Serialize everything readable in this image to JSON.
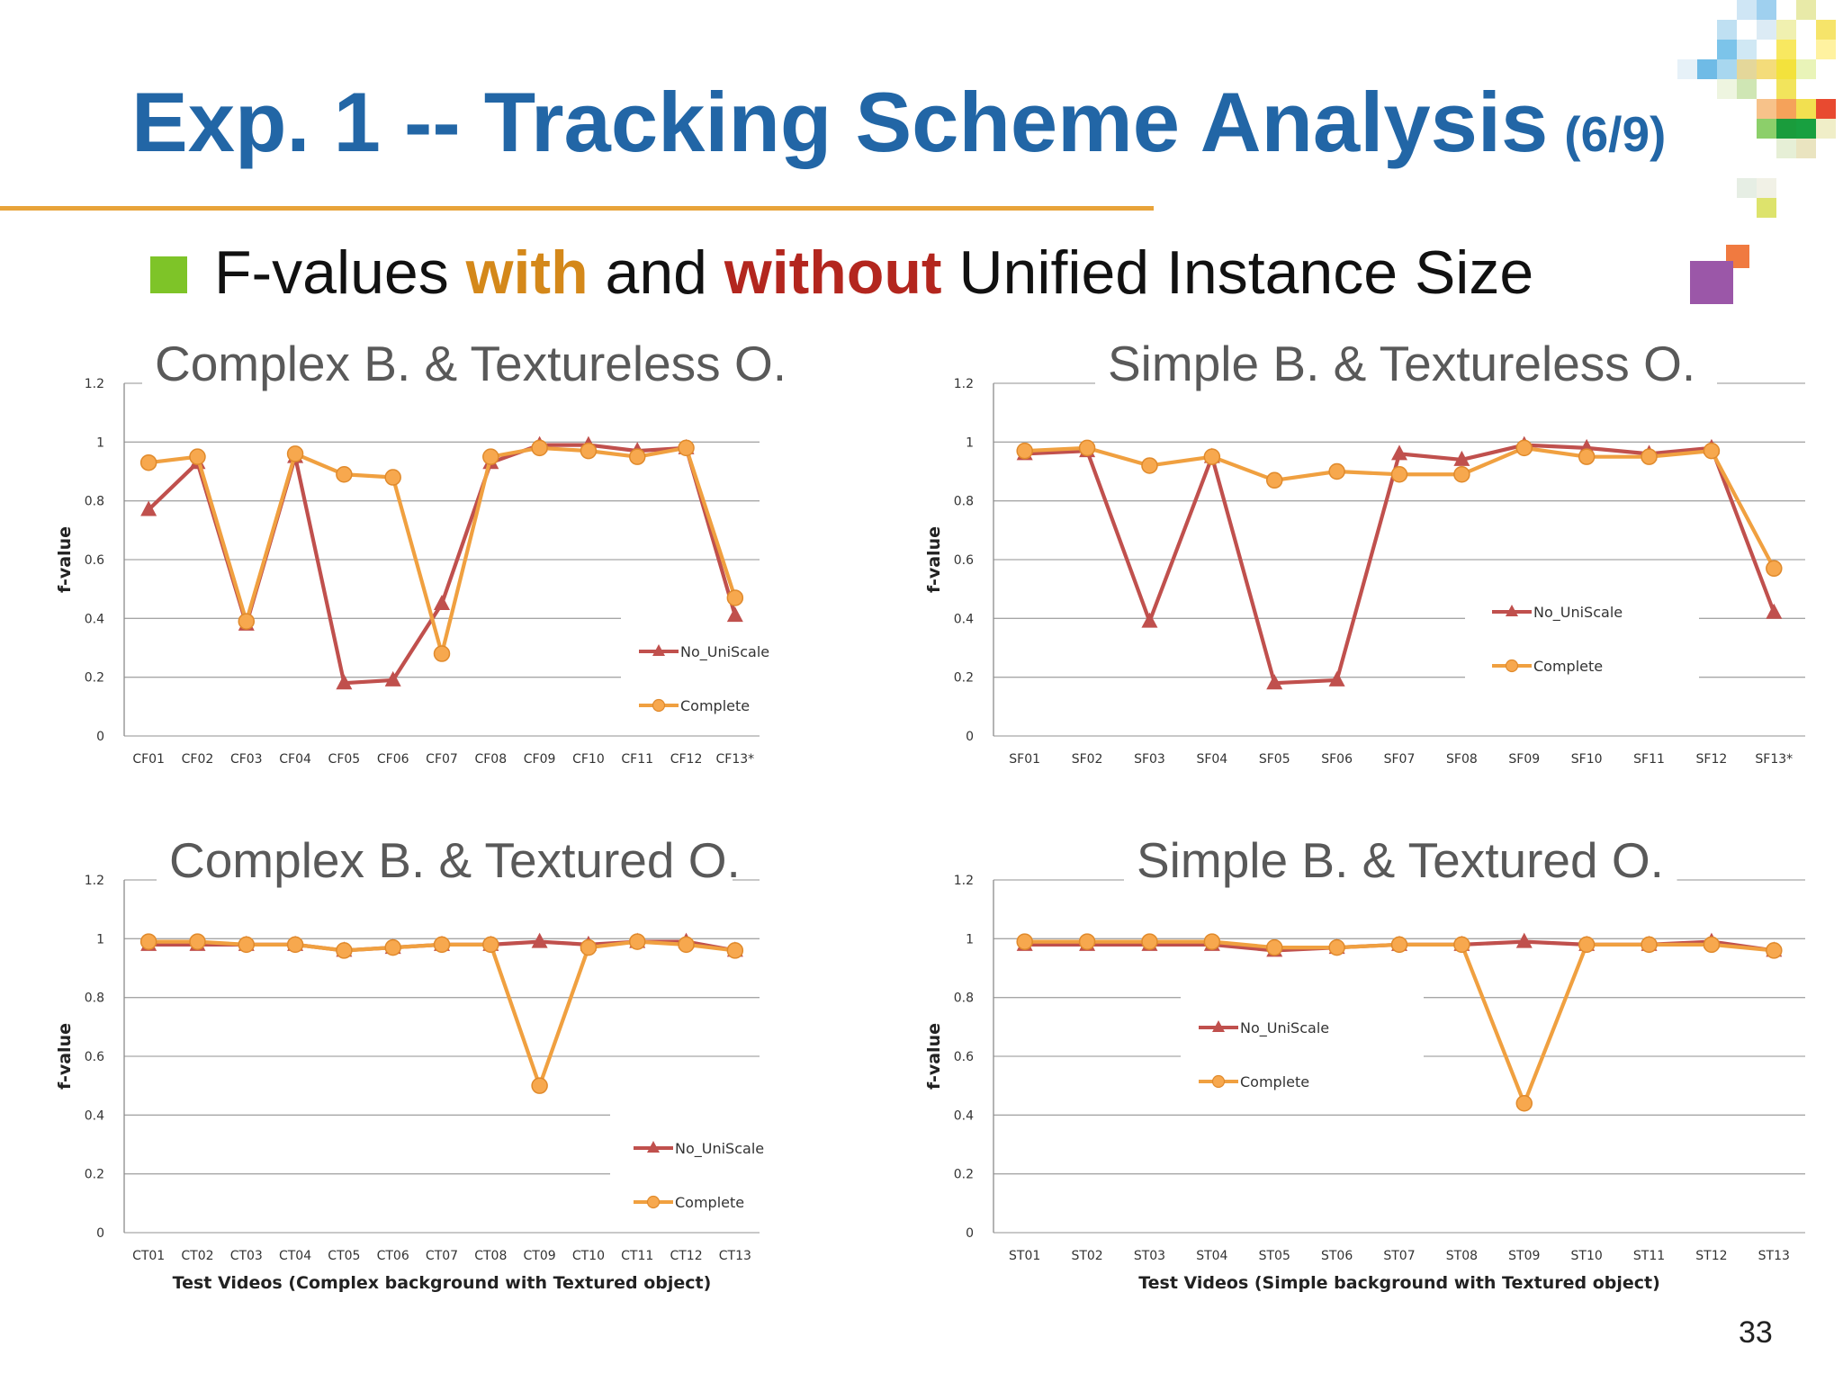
{
  "slide": {
    "title": "Exp. 1 -- Tracking Scheme Analysis",
    "title_suffix": "(6/9)",
    "bullet_part1": "F-values ",
    "bullet_with": "with",
    "bullet_part2": " and ",
    "bullet_without": "without",
    "bullet_part3": " Unified Instance Size",
    "page_number": "33"
  },
  "colors": {
    "title": "#2266a6",
    "rule": "#e8a33a",
    "bullet": "#7ec428",
    "with": "#d4881a",
    "without": "#b3261e",
    "no_uniscale_series": "#c0504d",
    "complete_series": "#f0a040"
  },
  "chart_data": [
    {
      "type": "line",
      "title": "Complex B. & Textureless O.",
      "ylabel": "f-value",
      "xlabel": "",
      "ylim": [
        0,
        1.2
      ],
      "yticks": [
        "0",
        "0.2",
        "0.4",
        "0.6",
        "0.8",
        "1",
        "1.2"
      ],
      "grid": true,
      "legend_position": "bottom-right",
      "categories": [
        "CF01",
        "CF02",
        "CF03",
        "CF04",
        "CF05",
        "CF06",
        "CF07",
        "CF08",
        "CF09",
        "CF10",
        "CF11",
        "CF12",
        "CF13*"
      ],
      "series": [
        {
          "name": "No_UniScale",
          "marker": "triangle",
          "values": [
            0.77,
            0.93,
            0.38,
            0.95,
            0.18,
            0.19,
            0.45,
            0.93,
            0.99,
            0.99,
            0.97,
            0.98,
            0.41
          ]
        },
        {
          "name": "Complete",
          "marker": "circle",
          "values": [
            0.93,
            0.95,
            0.39,
            0.96,
            0.89,
            0.88,
            0.28,
            0.95,
            0.98,
            0.97,
            0.95,
            0.98,
            0.47
          ]
        }
      ]
    },
    {
      "type": "line",
      "title": "Simple B. & Textureless O.",
      "ylabel": "f-value",
      "xlabel": "",
      "ylim": [
        0,
        1.2
      ],
      "yticks": [
        "0",
        "0.2",
        "0.4",
        "0.6",
        "0.8",
        "1",
        "1.2"
      ],
      "grid": true,
      "legend_position": "right",
      "categories": [
        "SF01",
        "SF02",
        "SF03",
        "SF04",
        "SF05",
        "SF06",
        "SF07",
        "SF08",
        "SF09",
        "SF10",
        "SF11",
        "SF12",
        "SF13*"
      ],
      "series": [
        {
          "name": "No_UniScale",
          "marker": "triangle",
          "values": [
            0.96,
            0.97,
            0.39,
            0.95,
            0.18,
            0.19,
            0.96,
            0.94,
            0.99,
            0.98,
            0.96,
            0.98,
            0.42
          ]
        },
        {
          "name": "Complete",
          "marker": "circle",
          "values": [
            0.97,
            0.98,
            0.92,
            0.95,
            0.87,
            0.9,
            0.89,
            0.89,
            0.98,
            0.95,
            0.95,
            0.97,
            0.57
          ]
        }
      ]
    },
    {
      "type": "line",
      "title": "Complex B. & Textured O.",
      "ylabel": "f-value",
      "xlabel": "Test Videos (Complex background with Textured object)",
      "ylim": [
        0,
        1.2
      ],
      "yticks": [
        "0",
        "0.2",
        "0.4",
        "0.6",
        "0.8",
        "1",
        "1.2"
      ],
      "grid": true,
      "legend_position": "bottom-right",
      "categories": [
        "CT01",
        "CT02",
        "CT03",
        "CT04",
        "CT05",
        "CT06",
        "CT07",
        "CT08",
        "CT09",
        "CT10",
        "CT11",
        "CT12",
        "CT13"
      ],
      "series": [
        {
          "name": "No_UniScale",
          "marker": "triangle",
          "values": [
            0.98,
            0.98,
            0.98,
            0.98,
            0.96,
            0.97,
            0.98,
            0.98,
            0.99,
            0.98,
            0.99,
            0.99,
            0.96
          ]
        },
        {
          "name": "Complete",
          "marker": "circle",
          "values": [
            0.99,
            0.99,
            0.98,
            0.98,
            0.96,
            0.97,
            0.98,
            0.98,
            0.5,
            0.97,
            0.99,
            0.98,
            0.96
          ]
        }
      ]
    },
    {
      "type": "line",
      "title": "Simple B. & Textured O.",
      "ylabel": "f-value",
      "xlabel": "Test Videos (Simple background with Textured object)",
      "ylim": [
        0,
        1.2
      ],
      "yticks": [
        "0",
        "0.2",
        "0.4",
        "0.6",
        "0.8",
        "1",
        "1.2"
      ],
      "grid": true,
      "legend_position": "left",
      "categories": [
        "ST01",
        "ST02",
        "ST03",
        "ST04",
        "ST05",
        "ST06",
        "ST07",
        "ST08",
        "ST09",
        "ST10",
        "ST11",
        "ST12",
        "ST13"
      ],
      "series": [
        {
          "name": "No_UniScale",
          "marker": "triangle",
          "values": [
            0.98,
            0.98,
            0.98,
            0.98,
            0.96,
            0.97,
            0.98,
            0.98,
            0.99,
            0.98,
            0.98,
            0.99,
            0.96
          ]
        },
        {
          "name": "Complete",
          "marker": "circle",
          "values": [
            0.99,
            0.99,
            0.99,
            0.99,
            0.97,
            0.97,
            0.98,
            0.98,
            0.44,
            0.98,
            0.98,
            0.98,
            0.96
          ]
        }
      ]
    }
  ]
}
